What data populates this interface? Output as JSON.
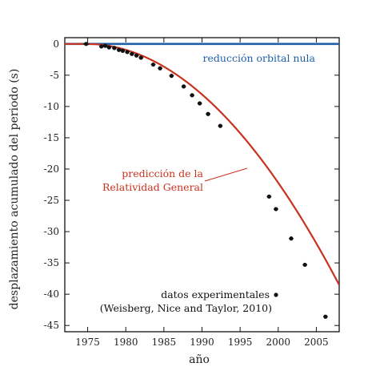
{
  "chart_data": {
    "type": "line",
    "xlabel": "año",
    "ylabel": "desplazamiento acumulado del periodo (s)",
    "xlim": [
      1972,
      2008
    ],
    "ylim": [
      -46,
      1
    ],
    "x_ticks": [
      1975,
      1980,
      1985,
      1990,
      1995,
      2000,
      2005
    ],
    "y_ticks": [
      0,
      -5,
      -10,
      -15,
      -20,
      -25,
      -30,
      -35,
      -40,
      -45
    ],
    "grid": false,
    "series": [
      {
        "name": "reducción orbital nula",
        "kind": "line",
        "color": "#1f5fa8",
        "x": [
          1972,
          2008
        ],
        "y": [
          0,
          0
        ]
      },
      {
        "name": "predicción de la Relatividad General",
        "kind": "line",
        "color": "#c8321e",
        "model": "quadratic",
        "origin_year": 1974.8,
        "x": [
          1972,
          1975,
          1980,
          1985,
          1990,
          1995,
          2000,
          2005,
          2008
        ],
        "y": [
          0,
          -0.01,
          -0.97,
          -3.6,
          -8.0,
          -14.3,
          -22.3,
          -32.2,
          -38.2
        ]
      },
      {
        "name": "datos experimentales",
        "kind": "scatter",
        "color": "#111111",
        "x": [
          1974.8,
          1976.8,
          1977.3,
          1977.8,
          1978.5,
          1979.1,
          1979.6,
          1980.2,
          1980.8,
          1981.4,
          1982.0,
          1983.6,
          1984.5,
          1986.0,
          1987.6,
          1988.7,
          1989.7,
          1990.8,
          1992.4,
          1998.8,
          1999.7,
          2001.7,
          2003.5,
          2006.2
        ],
        "y": [
          0.0,
          -0.4,
          -0.3,
          -0.55,
          -0.65,
          -0.95,
          -1.1,
          -1.3,
          -1.6,
          -1.85,
          -2.2,
          -3.3,
          -3.9,
          -5.1,
          -6.8,
          -8.2,
          -9.5,
          -11.2,
          -13.1,
          -24.4,
          -26.4,
          -31.1,
          -35.3,
          -43.6
        ],
        "x_err": [
          0.4,
          0.3,
          0.3,
          0.3,
          0.3,
          0.3,
          0.3,
          0.3,
          0.3,
          0.3,
          0.3,
          0.3,
          0.3,
          0.3,
          0.3,
          0.3,
          0.3,
          0.3,
          0.3,
          0.3,
          0.3,
          0.3,
          0.3,
          0.3
        ]
      }
    ],
    "annotations": {
      "blue_label": "reducción orbital nula",
      "red_label_line1": "predicción de la",
      "red_label_line2": "Relatividad General",
      "legend_label": "datos experimentales",
      "citation": "(Weisberg, Nice and Taylor, 2010)"
    }
  }
}
